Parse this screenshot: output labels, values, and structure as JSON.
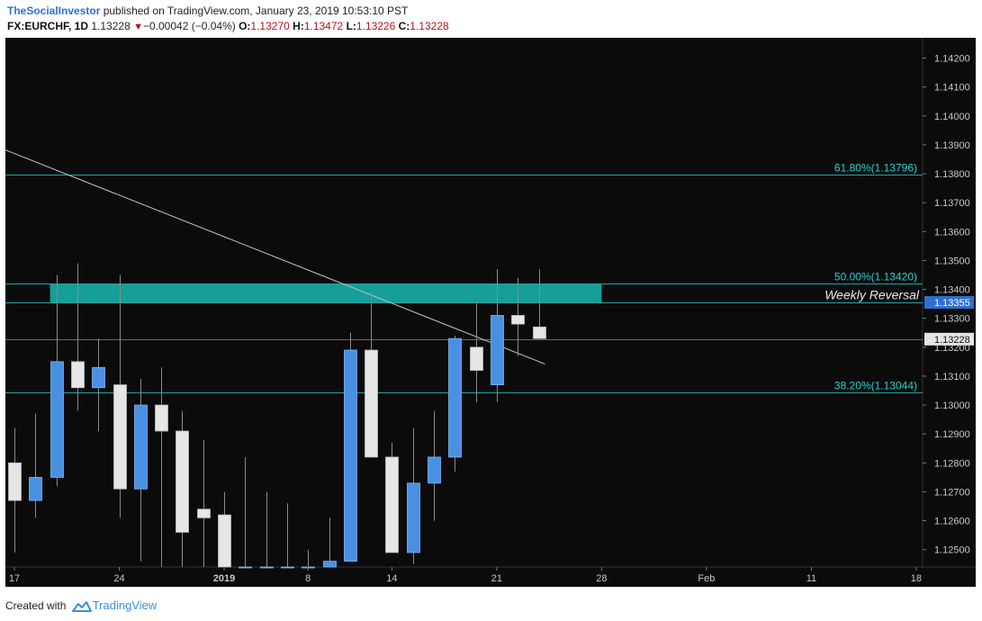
{
  "header": {
    "author": "TheSocialInvestor",
    "published_text": " published on TradingView.com, January 23, 2019 10:53:10 PST",
    "symbol": "FX:EURCHF, 1D",
    "last": "1.13228",
    "change": "−0.00042 (−0.04%)",
    "o_label": "O:",
    "o_value": "1.13270",
    "h_label": "H:",
    "h_value": "1.13472",
    "l_label": "L:",
    "l_value": "1.13226",
    "c_label": "C:",
    "c_value": "1.13228"
  },
  "footer": {
    "created_with": "Created with",
    "brand": "TradingView"
  },
  "colors": {
    "background": "#0b0b0b",
    "bull": "#4a90e2",
    "bear": "#e6e6e6",
    "wick": "#8a8a8a",
    "fib": "#1fa5a5",
    "fib_text": "#2ad0d0",
    "zone": "#17a6a0",
    "trend": "#c8c8c8",
    "axis_text": "#c8c8c8",
    "price_tag": "#2f6fd0"
  },
  "chart_data": {
    "type": "candlestick",
    "ylim": [
      1.1244,
      1.1427
    ],
    "y_ticks": [
      "1.12500",
      "1.12600",
      "1.12700",
      "1.12800",
      "1.12900",
      "1.13000",
      "1.13100",
      "1.13200",
      "1.13300",
      "1.13400",
      "1.13500",
      "1.13600",
      "1.13700",
      "1.13800",
      "1.13900",
      "1.14000",
      "1.14100",
      "1.14200"
    ],
    "x_ticks": [
      {
        "label": "17",
        "bar": 0
      },
      {
        "label": "24",
        "bar": 5
      },
      {
        "label": "2019",
        "bar": 10
      },
      {
        "label": "8",
        "bar": 14
      },
      {
        "label": "14",
        "bar": 18
      },
      {
        "label": "21",
        "bar": 23
      },
      {
        "label": "28",
        "bar": 28
      },
      {
        "label": "Feb",
        "bar": 33
      },
      {
        "label": "11",
        "bar": 38
      },
      {
        "label": "18",
        "bar": 43
      }
    ],
    "candles": [
      {
        "o": 1.128,
        "h": 1.1292,
        "l": 1.1249,
        "c": 1.1267
      },
      {
        "o": 1.1267,
        "h": 1.1297,
        "l": 1.1261,
        "c": 1.1275
      },
      {
        "o": 1.1275,
        "h": 1.1345,
        "l": 1.1272,
        "c": 1.1315
      },
      {
        "o": 1.1315,
        "h": 1.1349,
        "l": 1.1298,
        "c": 1.1306
      },
      {
        "o": 1.1306,
        "h": 1.1323,
        "l": 1.1291,
        "c": 1.1313
      },
      {
        "o": 1.1307,
        "h": 1.1345,
        "l": 1.1261,
        "c": 1.1271
      },
      {
        "o": 1.1271,
        "h": 1.1309,
        "l": 1.1246,
        "c": 1.13
      },
      {
        "o": 1.13,
        "h": 1.1313,
        "l": 1.1244,
        "c": 1.1291
      },
      {
        "o": 1.1291,
        "h": 1.1298,
        "l": 1.1244,
        "c": 1.1256
      },
      {
        "o": 1.1264,
        "h": 1.1288,
        "l": 1.1244,
        "c": 1.1261
      },
      {
        "o": 1.1262,
        "h": 1.127,
        "l": 1.1244,
        "c": 1.1244
      },
      {
        "o": 1.1244,
        "h": 1.1282,
        "l": 1.1244,
        "c": 1.1244
      },
      {
        "o": 1.1244,
        "h": 1.127,
        "l": 1.1244,
        "c": 1.1244
      },
      {
        "o": 1.1244,
        "h": 1.1266,
        "l": 1.1244,
        "c": 1.1244
      },
      {
        "o": 1.1244,
        "h": 1.125,
        "l": 1.1244,
        "c": 1.1244
      },
      {
        "o": 1.1244,
        "h": 1.1261,
        "l": 1.1244,
        "c": 1.1246
      },
      {
        "o": 1.1246,
        "h": 1.1325,
        "l": 1.1246,
        "c": 1.1319
      },
      {
        "o": 1.1319,
        "h": 1.1339,
        "l": 1.1283,
        "c": 1.1282
      },
      {
        "o": 1.1282,
        "h": 1.1287,
        "l": 1.1249,
        "c": 1.1249
      },
      {
        "o": 1.1249,
        "h": 1.1292,
        "l": 1.1245,
        "c": 1.1273
      },
      {
        "o": 1.1273,
        "h": 1.1298,
        "l": 1.126,
        "c": 1.1282
      },
      {
        "o": 1.1282,
        "h": 1.1324,
        "l": 1.1277,
        "c": 1.1323
      },
      {
        "o": 1.132,
        "h": 1.1336,
        "l": 1.1301,
        "c": 1.1312
      },
      {
        "o": 1.1307,
        "h": 1.1347,
        "l": 1.1301,
        "c": 1.1331
      },
      {
        "o": 1.1331,
        "h": 1.1344,
        "l": 1.1317,
        "c": 1.1328
      },
      {
        "o": 1.1327,
        "h": 1.1347,
        "l": 1.1323,
        "c": 1.1323
      }
    ],
    "fib_levels": [
      {
        "label": "61.80%(1.13796)",
        "price": 1.13796
      },
      {
        "label": "50.00%(1.13420)",
        "price": 1.1342
      },
      {
        "label": "38.20%(1.13044)",
        "price": 1.13044
      }
    ],
    "zone": {
      "from_bar": 2,
      "to_bar": 28,
      "top": 1.1342,
      "bottom": 1.13355,
      "label": "Weekly Reversal"
    },
    "trendline": {
      "bar1": -0.6,
      "price1": 1.13887,
      "bar2": 25.3,
      "price2": 1.13142
    },
    "price_tags": [
      {
        "value": "1.13355",
        "price": 1.13355,
        "style": "blue"
      },
      {
        "value": "1.13228",
        "price": 1.13228,
        "style": "light"
      }
    ],
    "bar_spacing": 23.3,
    "grid": false
  }
}
